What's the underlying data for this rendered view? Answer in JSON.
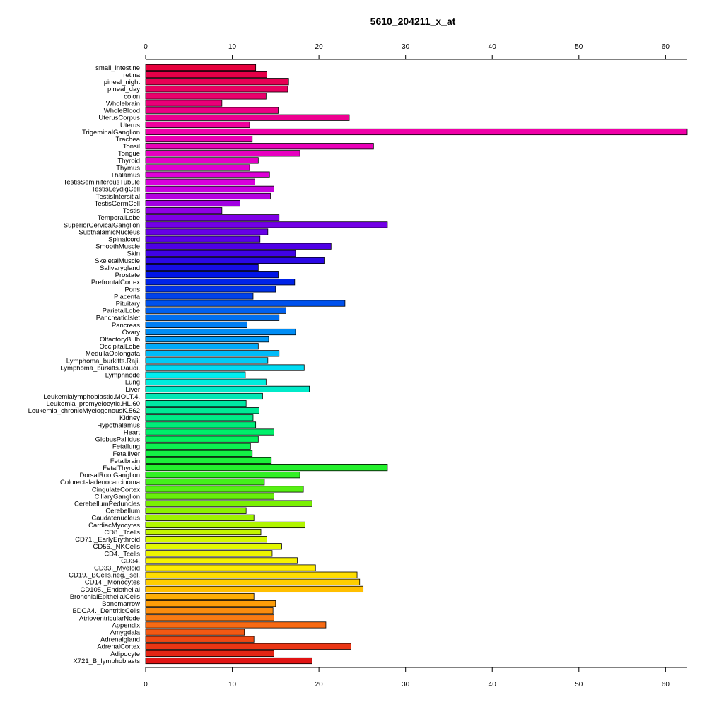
{
  "chart_data": {
    "type": "bar",
    "orientation": "horizontal",
    "title": "5610_204211_x_at",
    "xlabel": "",
    "ylabel": "",
    "xlim": [
      0,
      62.5
    ],
    "x_ticks": [
      0,
      10,
      20,
      30,
      40,
      50,
      60
    ],
    "axes": [
      "top",
      "bottom"
    ],
    "grid": false,
    "legend": "none",
    "categories": [
      "small_intestine",
      "retina",
      "pineal_night",
      "pineal_day",
      "colon",
      "Wholebrain",
      "WholeBlood",
      "UterusCorpus",
      "Uterus",
      "TrigeminalGanglion",
      "Trachea",
      "Tonsil",
      "Tongue",
      "Thyroid",
      "Thymus",
      "Thalamus",
      "TestisSeminiferousTubule",
      "TestisLeydigCell",
      "TestisIntersitial",
      "TestisGermCell",
      "Testis",
      "TemporalLobe",
      "SuperiorCervicalGanglion",
      "SubthalamicNucleus",
      "Spinalcord",
      "SmoothMuscle",
      "Skin",
      "SkeletalMuscle",
      "Salivarygland",
      "Prostate",
      "PrefrontalCortex",
      "Pons",
      "Placenta",
      "Pituitary",
      "ParietalLobe",
      "PancreaticIslet",
      "Pancreas",
      "Ovary",
      "OlfactoryBulb",
      "OccipitalLobe",
      "MedullaOblongata",
      "Lymphoma_burkitts.Raji.",
      "Lymphoma_burkitts.Daudi.",
      "Lymphnode",
      "Lung",
      "Liver",
      "Leukemialymphoblastic.MOLT.4.",
      "Leukemia_promyelocytic.HL.60",
      "Leukemia_chronicMyelogenousK.562",
      "Kidney",
      "Hypothalamus",
      "Heart",
      "GlobusPallidus",
      "Fetallung",
      "Fetalliver",
      "Fetalbrain",
      "FetalThyroid",
      "DorsalRootGanglion",
      "Colorectaladenocarcinoma",
      "CingulateCortex",
      "CiliaryGanglion",
      "CerebellumPeduncles",
      "Cerebellum",
      "Caudatenucleus",
      "CardiacMyocytes",
      "CD8._Tcells",
      "CD71._EarlyErythroid",
      "CD56._NKCells",
      "CD4._Tcells",
      "CD34.",
      "CD33._Myeloid",
      "CD19._BCells.neg._sel.",
      "CD14._Monocytes",
      "CD105._Endothelial",
      "BronchialEpithelialCells",
      "Bonemarrow",
      "BDCA4._DentriticCells",
      "AtrioventricularNode",
      "Appendix",
      "Amygdala",
      "Adrenalgland",
      "AdrenalCortex",
      "Adipocyte",
      "X721_B_lymphoblasts"
    ],
    "values": [
      12.7,
      14.0,
      16.5,
      16.4,
      13.9,
      8.8,
      15.3,
      23.5,
      12.0,
      62.5,
      12.3,
      26.3,
      17.8,
      13.0,
      12.0,
      14.3,
      12.6,
      14.8,
      14.4,
      10.9,
      8.8,
      15.4,
      27.9,
      14.1,
      13.2,
      21.4,
      17.3,
      20.6,
      13.0,
      15.3,
      17.2,
      15.0,
      12.4,
      23.0,
      16.2,
      15.4,
      11.7,
      17.3,
      14.2,
      13.0,
      15.4,
      14.1,
      18.3,
      11.5,
      13.9,
      18.9,
      13.5,
      11.6,
      13.1,
      12.4,
      12.7,
      14.8,
      13.0,
      12.1,
      12.3,
      14.5,
      27.9,
      17.8,
      13.7,
      18.2,
      14.8,
      19.2,
      11.6,
      12.5,
      18.4,
      13.3,
      14.0,
      15.7,
      14.6,
      17.5,
      19.6,
      24.4,
      24.7,
      25.1,
      12.5,
      15.0,
      14.7,
      14.8,
      20.8,
      11.4,
      12.5,
      23.7,
      14.8,
      19.2
    ]
  }
}
